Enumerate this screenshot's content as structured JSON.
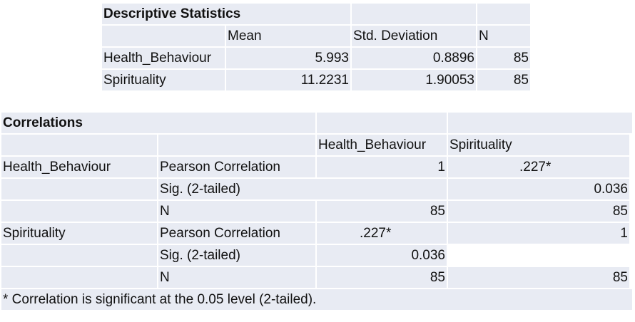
{
  "descriptive": {
    "title": "Descriptive Statistics",
    "headers": [
      "",
      "Mean",
      "Std. Deviation",
      "N"
    ],
    "rows": [
      {
        "label": "Health_Behaviour",
        "mean": "5.993",
        "sd": "0.8896",
        "n": "85"
      },
      {
        "label": "Spirituality",
        "mean": "11.2231",
        "sd": "1.90053",
        "n": "85"
      }
    ]
  },
  "correlations": {
    "title": "Correlations",
    "headers": [
      "",
      "",
      "Health_Behaviour",
      "Spirituality"
    ],
    "rows": [
      {
        "var": "Health_Behaviour",
        "stat": "Pearson Correlation",
        "c1": "1",
        "c2": ".227*"
      },
      {
        "var": "",
        "stat": "Sig. (2-tailed)",
        "c1": "",
        "c2": "0.036"
      },
      {
        "var": "",
        "stat": "N",
        "c1": "85",
        "c2": "85"
      },
      {
        "var": "Spirituality",
        "stat": "Pearson Correlation",
        "c1": ".227*",
        "c2": "1"
      },
      {
        "var": "",
        "stat": "Sig. (2-tailed)",
        "c1": "0.036",
        "c2": ""
      },
      {
        "var": "",
        "stat": "N",
        "c1": "85",
        "c2": "85"
      }
    ],
    "footnote": "* Correlation is significant at the 0.05 level (2-tailed)."
  }
}
